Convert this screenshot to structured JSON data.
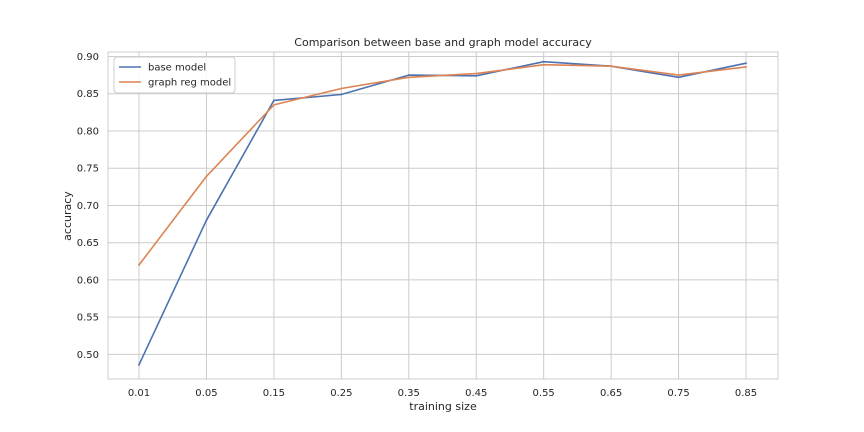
{
  "chart_data": {
    "type": "line",
    "title": "Comparison between base and graph model accuracy",
    "xlabel": "training size",
    "ylabel": "accuracy",
    "categories": [
      "0.01",
      "0.05",
      "0.15",
      "0.25",
      "0.35",
      "0.45",
      "0.55",
      "0.65",
      "0.75",
      "0.85"
    ],
    "yticks": [
      "0.50",
      "0.55",
      "0.60",
      "0.65",
      "0.70",
      "0.75",
      "0.80",
      "0.85",
      "0.90"
    ],
    "ylim": [
      0.467,
      0.906
    ],
    "grid": true,
    "legend_position": "top-left",
    "series": [
      {
        "name": "base model",
        "color": "#4c72b0",
        "values": [
          0.486,
          0.68,
          0.841,
          0.849,
          0.875,
          0.874,
          0.893,
          0.887,
          0.872,
          0.891
        ]
      },
      {
        "name": "graph reg model",
        "color": "#dd8452",
        "values": [
          0.62,
          0.739,
          0.835,
          0.857,
          0.872,
          0.877,
          0.889,
          0.887,
          0.875,
          0.886
        ]
      }
    ]
  }
}
